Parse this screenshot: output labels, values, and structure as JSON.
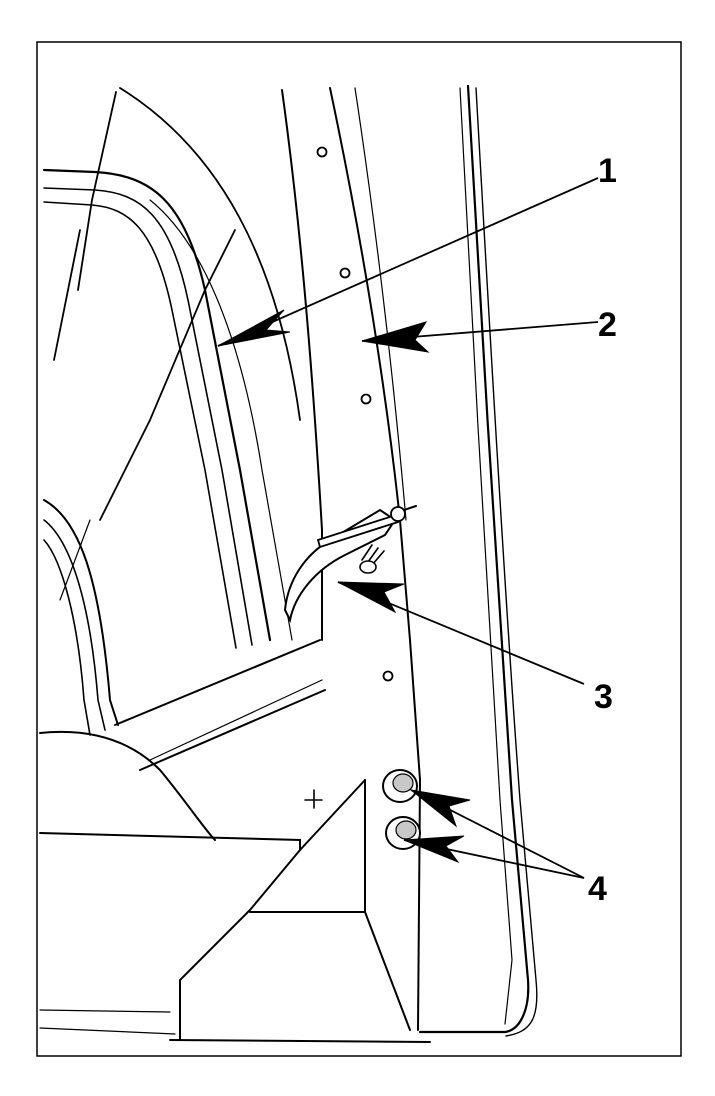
{
  "diagram": {
    "colors": {
      "line": "#000000",
      "background": "#ffffff",
      "shade": "#9a9a9a"
    },
    "callouts": [
      {
        "id": "1",
        "label": "1"
      },
      {
        "id": "2",
        "label": "2"
      },
      {
        "id": "3",
        "label": "3"
      },
      {
        "id": "4",
        "label": "4"
      }
    ]
  }
}
